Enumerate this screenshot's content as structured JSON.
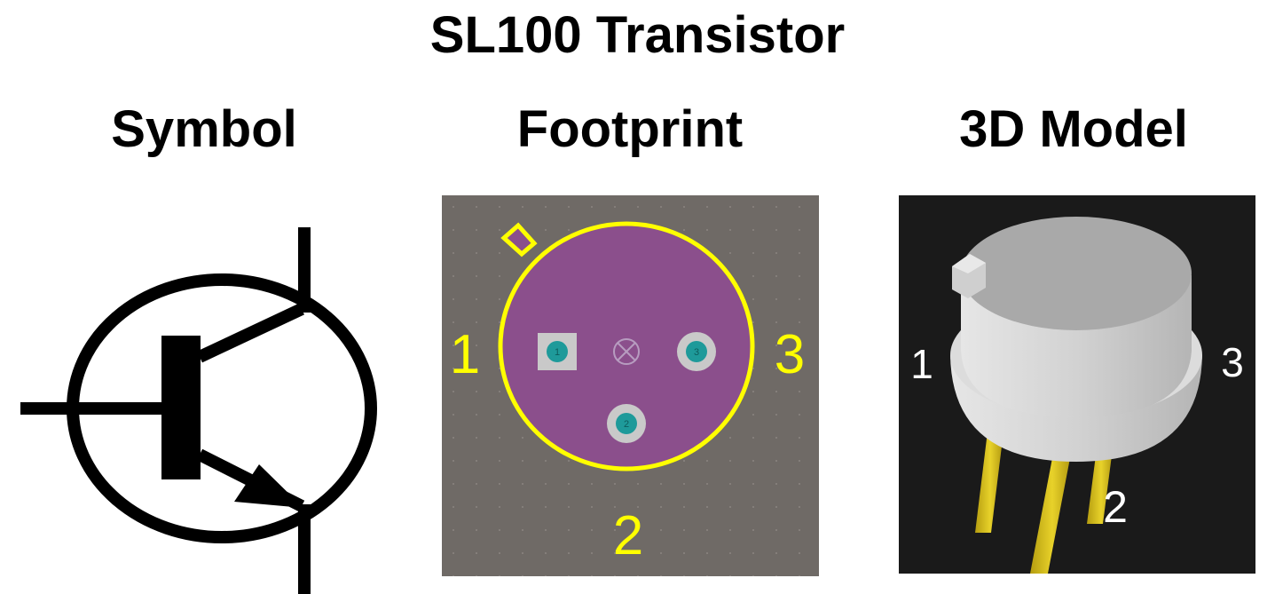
{
  "title": "SL100 Transistor",
  "columns": {
    "symbol": "Symbol",
    "footprint": "Footprint",
    "model": "3D Model"
  },
  "footprint": {
    "pin_labels": [
      "1",
      "3",
      "2"
    ],
    "pad_numbers": [
      "1",
      "3",
      "2"
    ],
    "colors": {
      "board": "#6f6a66",
      "body": "#8b4f8c",
      "outline": "#ffff00",
      "pad": "#c9c9c9",
      "pad_center": "#1e9a9a"
    }
  },
  "model": {
    "pin_labels": [
      "1",
      "3",
      "2"
    ],
    "colors": {
      "background": "#1a1a1a",
      "can": "#bdbdbd",
      "leads": "#d9c21a"
    }
  }
}
